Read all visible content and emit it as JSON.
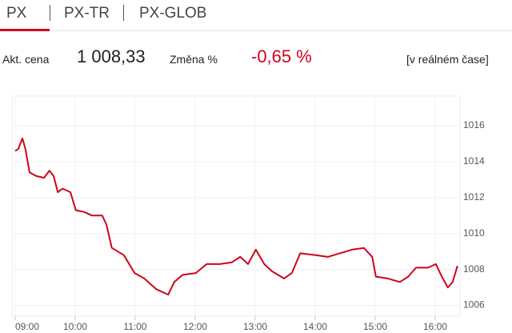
{
  "tabs": [
    "PX",
    "PX-TR",
    "PX-GLOB"
  ],
  "info": {
    "price_label": "Akt. cena",
    "price": "1 008,33",
    "change_label": "Změna %",
    "change": "-0,65 %",
    "realtime": "[v reálném čase]"
  },
  "chart_data": {
    "type": "line",
    "color": "#d0021b",
    "grid": true,
    "x": [
      9.0,
      9.05,
      9.12,
      9.17,
      9.24,
      9.35,
      9.48,
      9.57,
      9.64,
      9.71,
      9.79,
      9.92,
      10.01,
      10.15,
      10.28,
      10.45,
      10.52,
      10.61,
      10.81,
      10.99,
      11.15,
      11.35,
      11.55,
      11.65,
      11.79,
      12.01,
      12.19,
      12.41,
      12.61,
      12.75,
      12.88,
      13.01,
      13.15,
      13.28,
      13.48,
      13.61,
      13.75,
      14.01,
      14.21,
      14.41,
      14.61,
      14.81,
      14.95,
      15.01,
      15.21,
      15.41,
      15.55,
      15.68,
      15.88,
      16.01,
      16.11,
      16.21,
      16.29,
      16.37
    ],
    "values": [
      1014.6,
      1014.7,
      1015.3,
      1014.7,
      1013.4,
      1013.2,
      1013.1,
      1013.5,
      1013.2,
      1012.3,
      1012.5,
      1012.3,
      1011.3,
      1011.2,
      1011.0,
      1011.0,
      1010.5,
      1009.2,
      1008.8,
      1007.8,
      1007.5,
      1006.9,
      1006.6,
      1007.3,
      1007.7,
      1007.8,
      1008.3,
      1008.3,
      1008.4,
      1008.7,
      1008.3,
      1009.1,
      1008.3,
      1007.9,
      1007.5,
      1007.8,
      1008.9,
      1008.8,
      1008.7,
      1008.9,
      1009.1,
      1009.2,
      1008.7,
      1007.6,
      1007.5,
      1007.3,
      1007.6,
      1008.1,
      1008.1,
      1008.3,
      1007.6,
      1007.0,
      1007.3,
      1008.2
    ],
    "xlim": [
      9,
      16.413
    ],
    "xticks": [
      {
        "value": 9,
        "label": "09:00"
      },
      {
        "value": 10,
        "label": "10:00"
      },
      {
        "value": 11,
        "label": "11:00"
      },
      {
        "value": 12,
        "label": "12:00"
      },
      {
        "value": 13,
        "label": "13:00"
      },
      {
        "value": 14,
        "label": "14:00"
      },
      {
        "value": 15,
        "label": "15:00"
      },
      {
        "value": 16,
        "label": "16:00"
      }
    ],
    "ylim": [
      1005.4,
      1017.65
    ],
    "yticks": [
      1006,
      1008,
      1010,
      1012,
      1014,
      1016
    ]
  }
}
